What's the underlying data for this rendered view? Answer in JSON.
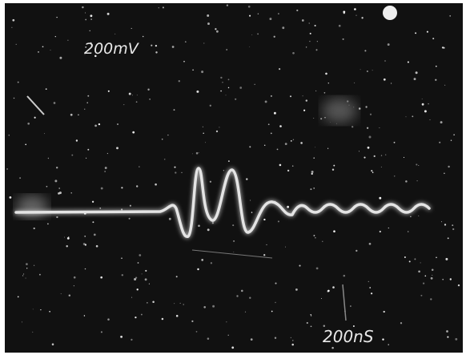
{
  "labels": {
    "vertical_scale": "200mV",
    "horizontal_scale": "200nS"
  }
}
